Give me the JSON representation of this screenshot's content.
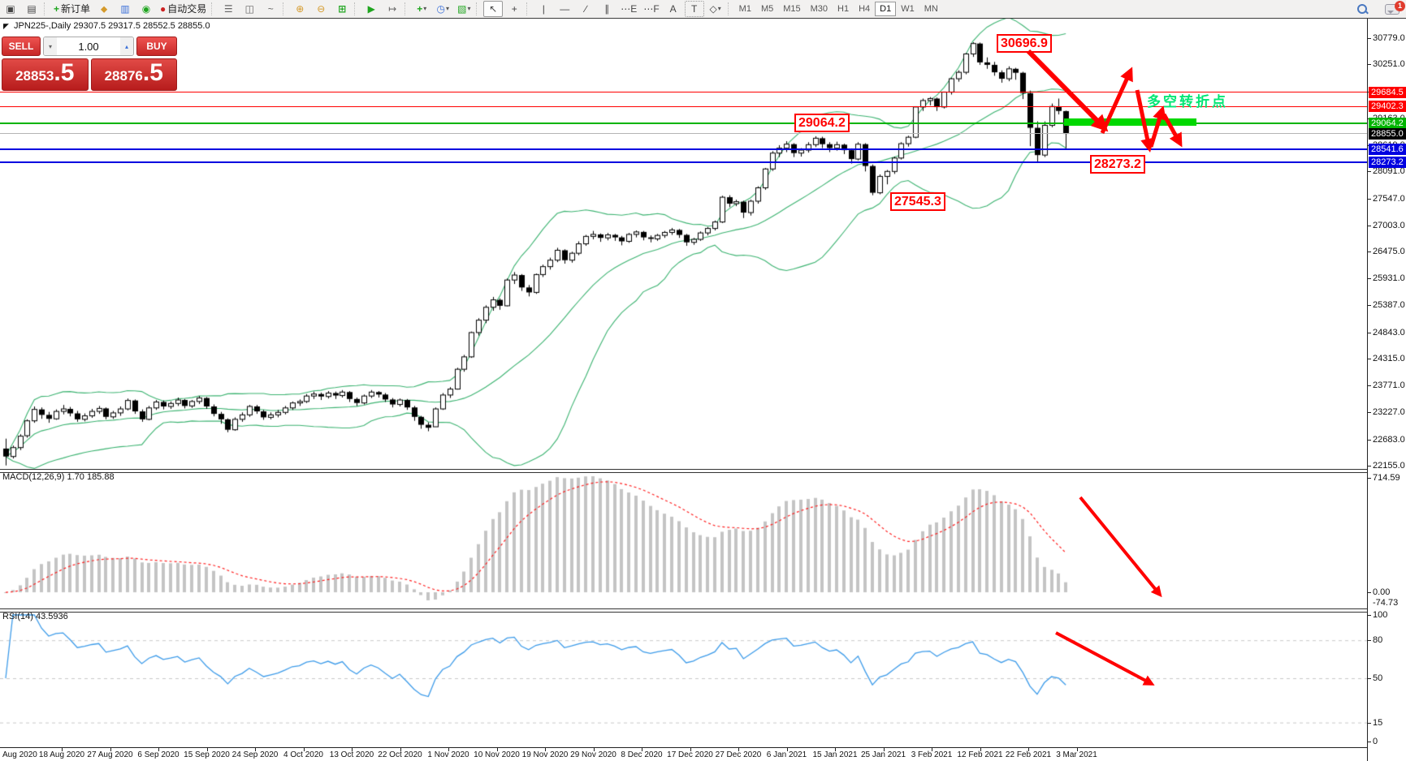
{
  "toolbar": {
    "new_order_label": "新订单",
    "autotrade_label": "自动交易",
    "timeframes": [
      "M1",
      "M5",
      "M15",
      "M30",
      "H1",
      "H4",
      "D1",
      "W1",
      "MN"
    ],
    "active_timeframe": "D1",
    "chat_badge": "1",
    "icons": {
      "chart_window": "▣",
      "preview": "▤",
      "new_order": "+",
      "eraser": "⬥",
      "market": "▥",
      "signal": "◉",
      "autotrade": "●",
      "bars": "☰",
      "candles": "◫",
      "linechart": "~",
      "zoom_in": "⊕",
      "zoom_out": "⊖",
      "tile": "⊞",
      "autoscroll": "▶",
      "shift": "↦",
      "indicators": "+",
      "periods": "◷",
      "template": "▧",
      "caret": "▾",
      "cursor": "↖",
      "crosshair": "+",
      "vline": "|",
      "hline": "—",
      "trendline": "∕",
      "channel": "∥",
      "fib_e": "⋯E",
      "fib_f": "⋯F",
      "text_a": "A",
      "text_t": "T",
      "shapes": "◇",
      "spin_down": "▾",
      "spin_up": "▴"
    }
  },
  "chart": {
    "symbol_title": "JPN225-,Daily",
    "ohlc_text": "29307.5 29317.5 28552.5 28855.0",
    "cursor_glyph": "◤"
  },
  "one_click": {
    "sell_label": "SELL",
    "buy_label": "BUY",
    "volume": "1.00",
    "sell_int": "28853",
    "sell_big": ".5",
    "buy_int": "28876",
    "buy_big": ".5"
  },
  "levels": [
    {
      "label": "29684.5",
      "price": 29684.5,
      "color": "#ff0000",
      "width": 1
    },
    {
      "label": "29402.3",
      "price": 29402.3,
      "color": "#ff0000",
      "width": 1
    },
    {
      "label": "29064.2",
      "price": 29064.2,
      "color": "#00b400",
      "width": 2
    },
    {
      "label": "28855.0",
      "price": 28855.0,
      "color": "#b4b4b4",
      "width": 1,
      "badge": "#000000",
      "current": true
    },
    {
      "label": "28541.6",
      "price": 28541.6,
      "color": "#0000e0",
      "width": 2
    },
    {
      "label": "28273.2",
      "price": 28273.2,
      "color": "#0000e0",
      "width": 2
    }
  ],
  "annotations": {
    "high_label": "30696.9",
    "mid_label": "29064.2",
    "low_label": "28273.2",
    "prev_low_label": "27545.3",
    "turning_point_text": "多空转折点",
    "arrow_color": "#ff0000",
    "bar_color": "#00d800"
  },
  "macd_panel": {
    "name": "MACD(12,26,9)",
    "values": "1.70 185.88",
    "axis_max": "714.59",
    "axis_zero": "0.00",
    "axis_min": "-74.73"
  },
  "rsi_panel": {
    "name": "RSI(14)",
    "value": "43.5936",
    "axis": [
      "100",
      "80",
      "50",
      "15",
      "0"
    ],
    "level_values": [
      80,
      50,
      15
    ]
  },
  "chart_data": {
    "type": "candlestick",
    "symbol": "JPN225-",
    "period": "Daily",
    "title": "JPN225-,Daily 29307.5 29317.5 28552.5 28855.0",
    "y_ticks": [
      "30779.0",
      "30251.0",
      "29707.0",
      "29163.0",
      "28619.0",
      "28091.0",
      "27547.0",
      "27003.0",
      "26475.0",
      "25931.0",
      "25387.0",
      "24843.0",
      "24315.0",
      "23771.0",
      "23227.0",
      "22683.0",
      "22155.0"
    ],
    "x_labels": [
      "Aug 2020",
      "18 Aug 2020",
      "27 Aug 2020",
      "6 Sep 2020",
      "15 Sep 2020",
      "24 Sep 2020",
      "4 Oct 2020",
      "13 Oct 2020",
      "22 Oct 2020",
      "1 Nov 2020",
      "10 Nov 2020",
      "19 Nov 2020",
      "29 Nov 2020",
      "8 Dec 2020",
      "17 Dec 2020",
      "27 Dec 2020",
      "6 Jan 2021",
      "15 Jan 2021",
      "25 Jan 2021",
      "3 Feb 2021",
      "12 Feb 2021",
      "22 Feb 2021",
      "3 Mar 2021"
    ],
    "price_range": [
      22089,
      31172
    ],
    "indicators": {
      "bollinger": {
        "period": 20,
        "deviation": 2,
        "color": "#3cb371"
      },
      "macd": {
        "fast": 12,
        "slow": 26,
        "signal": 9,
        "hist_color": "#c4c4c4",
        "signal_color": "#ff2020"
      },
      "rsi": {
        "period": 14,
        "color": "#3d9be9"
      }
    },
    "candles": [
      [
        22500,
        22700,
        22160,
        22340
      ],
      [
        22340,
        22560,
        22300,
        22520
      ],
      [
        22520,
        22790,
        22470,
        22750
      ],
      [
        22760,
        23090,
        22720,
        23060
      ],
      [
        23060,
        23350,
        23020,
        23290
      ],
      [
        23290,
        23330,
        23100,
        23180
      ],
      [
        23180,
        23240,
        23020,
        23100
      ],
      [
        23100,
        23290,
        23080,
        23250
      ],
      [
        23250,
        23380,
        23190,
        23300
      ],
      [
        23300,
        23340,
        23150,
        23210
      ],
      [
        23210,
        23260,
        23040,
        23090
      ],
      [
        23090,
        23210,
        23050,
        23160
      ],
      [
        23160,
        23300,
        23120,
        23250
      ],
      [
        23250,
        23360,
        23200,
        23310
      ],
      [
        23310,
        23330,
        23090,
        23140
      ],
      [
        23140,
        23260,
        23100,
        23220
      ],
      [
        23220,
        23350,
        23160,
        23300
      ],
      [
        23300,
        23510,
        23270,
        23470
      ],
      [
        23470,
        23490,
        23200,
        23250
      ],
      [
        23250,
        23290,
        23040,
        23090
      ],
      [
        23090,
        23360,
        23070,
        23320
      ],
      [
        23320,
        23480,
        23280,
        23440
      ],
      [
        23440,
        23470,
        23290,
        23350
      ],
      [
        23350,
        23450,
        23300,
        23410
      ],
      [
        23410,
        23530,
        23360,
        23480
      ],
      [
        23480,
        23500,
        23310,
        23360
      ],
      [
        23360,
        23480,
        23320,
        23450
      ],
      [
        23450,
        23560,
        23400,
        23520
      ],
      [
        23520,
        23540,
        23300,
        23350
      ],
      [
        23350,
        23390,
        23150,
        23200
      ],
      [
        23200,
        23240,
        23000,
        23090
      ],
      [
        23090,
        23110,
        22830,
        22880
      ],
      [
        22880,
        23130,
        22860,
        23090
      ],
      [
        23090,
        23230,
        23040,
        23180
      ],
      [
        23180,
        23380,
        23140,
        23350
      ],
      [
        23350,
        23380,
        23200,
        23250
      ],
      [
        23250,
        23280,
        23080,
        23130
      ],
      [
        23130,
        23230,
        23090,
        23180
      ],
      [
        23180,
        23280,
        23130,
        23230
      ],
      [
        23230,
        23360,
        23190,
        23320
      ],
      [
        23320,
        23450,
        23280,
        23420
      ],
      [
        23420,
        23490,
        23360,
        23450
      ],
      [
        23450,
        23600,
        23420,
        23560
      ],
      [
        23560,
        23650,
        23500,
        23600
      ],
      [
        23600,
        23630,
        23480,
        23550
      ],
      [
        23550,
        23660,
        23510,
        23620
      ],
      [
        23620,
        23650,
        23500,
        23570
      ],
      [
        23570,
        23680,
        23530,
        23640
      ],
      [
        23640,
        23660,
        23440,
        23500
      ],
      [
        23500,
        23530,
        23360,
        23420
      ],
      [
        23420,
        23590,
        23390,
        23560
      ],
      [
        23560,
        23680,
        23520,
        23640
      ],
      [
        23640,
        23660,
        23530,
        23590
      ],
      [
        23590,
        23620,
        23440,
        23490
      ],
      [
        23490,
        23520,
        23330,
        23390
      ],
      [
        23390,
        23510,
        23350,
        23480
      ],
      [
        23480,
        23500,
        23280,
        23330
      ],
      [
        23330,
        23360,
        23060,
        23140
      ],
      [
        23140,
        23160,
        22900,
        22980
      ],
      [
        22980,
        23030,
        22850,
        22920
      ],
      [
        22940,
        23330,
        22940,
        23300
      ],
      [
        23300,
        23620,
        23280,
        23580
      ],
      [
        23580,
        23740,
        23520,
        23700
      ],
      [
        23700,
        24130,
        23690,
        24100
      ],
      [
        24100,
        24390,
        24050,
        24350
      ],
      [
        24350,
        24860,
        24330,
        24840
      ],
      [
        24840,
        25130,
        24780,
        25090
      ],
      [
        25090,
        25390,
        25030,
        25350
      ],
      [
        25350,
        25560,
        25280,
        25500
      ],
      [
        25500,
        25530,
        25300,
        25380
      ],
      [
        25380,
        25930,
        25370,
        25900
      ],
      [
        25900,
        26060,
        25820,
        26000
      ],
      [
        26000,
        26020,
        25680,
        25750
      ],
      [
        25750,
        25800,
        25570,
        25650
      ],
      [
        25650,
        26030,
        25620,
        26010
      ],
      [
        26010,
        26210,
        25960,
        26170
      ],
      [
        26170,
        26350,
        26110,
        26300
      ],
      [
        26300,
        26550,
        26260,
        26500
      ],
      [
        26500,
        26520,
        26230,
        26300
      ],
      [
        26300,
        26470,
        26250,
        26440
      ],
      [
        26440,
        26680,
        26400,
        26630
      ],
      [
        26630,
        26810,
        26590,
        26780
      ],
      [
        26780,
        26890,
        26720,
        26820
      ],
      [
        26820,
        26840,
        26670,
        26750
      ],
      [
        26750,
        26850,
        26700,
        26810
      ],
      [
        26810,
        26830,
        26690,
        26760
      ],
      [
        26760,
        26790,
        26600,
        26680
      ],
      [
        26680,
        26850,
        26650,
        26820
      ],
      [
        26820,
        26900,
        26760,
        26870
      ],
      [
        26870,
        26890,
        26700,
        26760
      ],
      [
        26760,
        26800,
        26660,
        26730
      ],
      [
        26730,
        26830,
        26690,
        26800
      ],
      [
        26800,
        26890,
        26750,
        26860
      ],
      [
        26860,
        26950,
        26810,
        26910
      ],
      [
        26910,
        26930,
        26750,
        26810
      ],
      [
        26810,
        26830,
        26590,
        26660
      ],
      [
        26660,
        26750,
        26610,
        26720
      ],
      [
        26720,
        26880,
        26690,
        26850
      ],
      [
        26850,
        26970,
        26800,
        26940
      ],
      [
        26940,
        27100,
        26900,
        27070
      ],
      [
        27070,
        27600,
        27050,
        27570
      ],
      [
        27570,
        27610,
        27370,
        27440
      ],
      [
        27440,
        27520,
        27390,
        27480
      ],
      [
        27480,
        27500,
        27150,
        27260
      ],
      [
        27260,
        27520,
        27200,
        27490
      ],
      [
        27490,
        27790,
        27440,
        27760
      ],
      [
        27760,
        28160,
        27720,
        28140
      ],
      [
        28140,
        28500,
        28100,
        28460
      ],
      [
        28460,
        28620,
        28380,
        28560
      ],
      [
        28560,
        28700,
        28480,
        28640
      ],
      [
        28640,
        28660,
        28380,
        28460
      ],
      [
        28460,
        28560,
        28390,
        28520
      ],
      [
        28520,
        28680,
        28470,
        28630
      ],
      [
        28630,
        28800,
        28580,
        28760
      ],
      [
        28760,
        28790,
        28560,
        28640
      ],
      [
        28640,
        28680,
        28480,
        28560
      ],
      [
        28560,
        28690,
        28510,
        28630
      ],
      [
        28630,
        28650,
        28440,
        28520
      ],
      [
        28520,
        28550,
        28250,
        28340
      ],
      [
        28340,
        28680,
        28310,
        28640
      ],
      [
        28640,
        28660,
        28090,
        28200
      ],
      [
        28200,
        28230,
        27610,
        27660
      ],
      [
        27660,
        28030,
        27630,
        27990
      ],
      [
        27990,
        28120,
        27830,
        28090
      ],
      [
        28090,
        28390,
        28040,
        28360
      ],
      [
        28360,
        28680,
        28330,
        28650
      ],
      [
        28650,
        28810,
        28590,
        28780
      ],
      [
        28780,
        29400,
        28760,
        29390
      ],
      [
        29390,
        29560,
        29310,
        29520
      ],
      [
        29520,
        29590,
        29420,
        29560
      ],
      [
        29560,
        29580,
        29310,
        29390
      ],
      [
        29390,
        29700,
        29360,
        29690
      ],
      [
        29690,
        29980,
        29640,
        29960
      ],
      [
        29960,
        30130,
        29900,
        30090
      ],
      [
        30090,
        30480,
        30050,
        30460
      ],
      [
        30460,
        30697,
        30400,
        30670
      ],
      [
        30670,
        30690,
        30240,
        30290
      ],
      [
        30290,
        30390,
        30160,
        30240
      ],
      [
        30240,
        30300,
        30020,
        30090
      ],
      [
        30090,
        30130,
        29880,
        29960
      ],
      [
        29960,
        30210,
        29910,
        30160
      ],
      [
        30160,
        30180,
        29940,
        30080
      ],
      [
        30080,
        30100,
        29550,
        29670
      ],
      [
        29670,
        29720,
        28600,
        28970
      ],
      [
        28970,
        29100,
        28273,
        28420
      ],
      [
        28420,
        29100,
        28380,
        29020
      ],
      [
        29020,
        29460,
        28980,
        29400
      ],
      [
        29400,
        29560,
        29240,
        29310
      ],
      [
        29307,
        29317,
        28552,
        28855
      ]
    ]
  }
}
